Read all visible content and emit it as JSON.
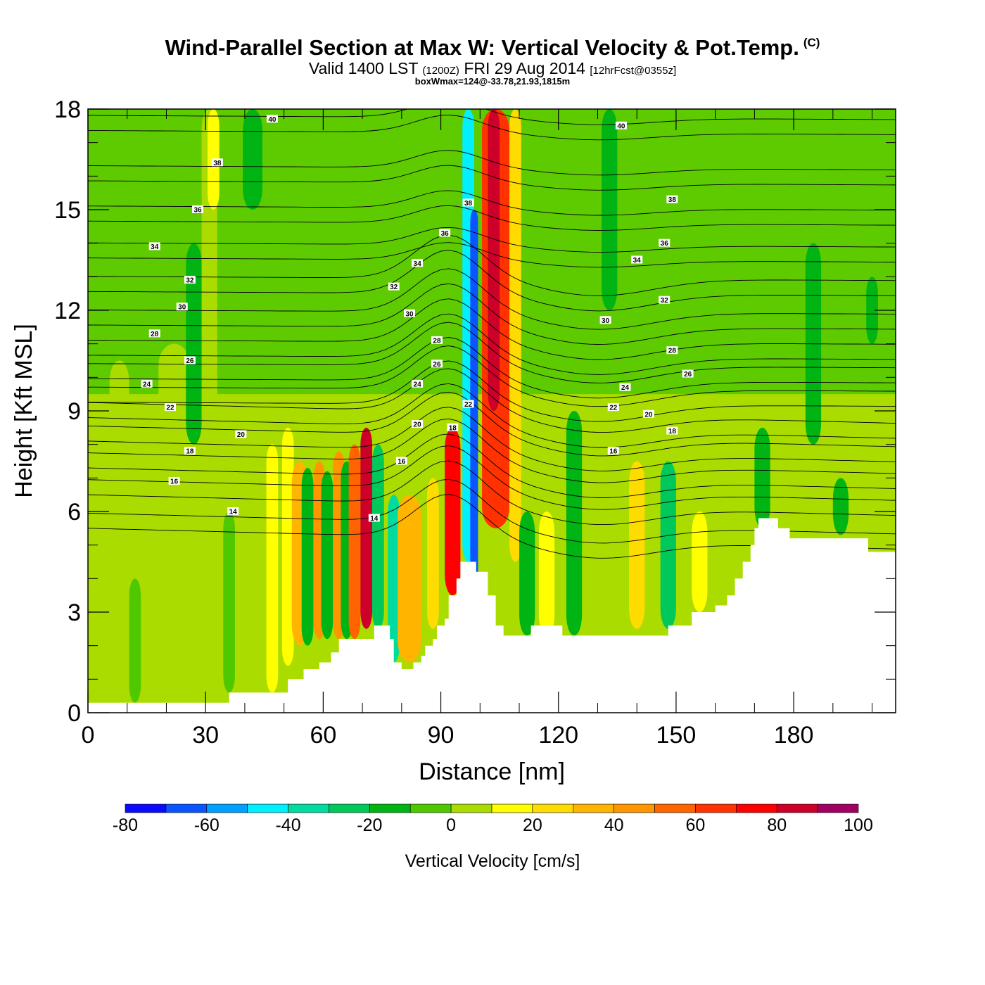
{
  "title": {
    "main": "Wind-Parallel Section at Max W: Vertical Velocity & Pot.Temp.",
    "copyright": "(C)",
    "valid_prefix": "Valid 1400 LST",
    "utc": "(1200Z)",
    "date": "FRI 29 Aug 2014",
    "forecast": "[12hrFcst@0355z]",
    "boxwmax": "boxWmax=124@-33.78,21.93,1815m"
  },
  "chart_data": {
    "type": "heatmap",
    "xlabel": "Distance [nm]",
    "ylabel": "Height [Kft MSL]",
    "xlim": [
      0,
      206
    ],
    "ylim": [
      0,
      18
    ],
    "x_ticks": [
      0,
      30,
      60,
      90,
      120,
      150,
      180
    ],
    "y_ticks": [
      0,
      3,
      6,
      9,
      12,
      15,
      18
    ],
    "colorbar": {
      "label": "Vertical Velocity [cm/s]",
      "ticks": [
        -80,
        -60,
        -40,
        -20,
        0,
        20,
        40,
        60,
        80,
        100
      ],
      "bounds": [
        -80,
        -70,
        -60,
        -50,
        -40,
        -30,
        -20,
        -10,
        0,
        10,
        20,
        30,
        40,
        50,
        60,
        70,
        80,
        90,
        100
      ],
      "colors": [
        "#0a0aff",
        "#0a55ff",
        "#00a0ff",
        "#00f0ff",
        "#00dca0",
        "#00c85a",
        "#00b414",
        "#50c800",
        "#aadc00",
        "#ffff00",
        "#ffdc00",
        "#ffb400",
        "#ff9600",
        "#ff6400",
        "#ff3200",
        "#ff0000",
        "#cc0028",
        "#a00060"
      ]
    },
    "velocity_features": [
      {
        "x": 8,
        "w": 5,
        "top": 10.5,
        "bottom": 0.3,
        "value": 5
      },
      {
        "x": 22,
        "w": 8,
        "top": 11,
        "bottom": 0.3,
        "value": 5
      },
      {
        "x": 12,
        "w": 3,
        "top": 4,
        "bottom": 0.3,
        "value": -5
      },
      {
        "x": 27,
        "w": 4,
        "top": 14,
        "bottom": 8,
        "value": -15
      },
      {
        "x": 31,
        "w": 4,
        "top": 18,
        "bottom": 5,
        "value": 5
      },
      {
        "x": 32,
        "w": 3,
        "top": 18,
        "bottom": 15,
        "value": 15
      },
      {
        "x": 36,
        "w": 3,
        "top": 6,
        "bottom": 0.6,
        "value": -5
      },
      {
        "x": 42,
        "w": 5,
        "top": 18,
        "bottom": 15,
        "value": -15
      },
      {
        "x": 47,
        "w": 3,
        "top": 8,
        "bottom": 0.6,
        "value": 12
      },
      {
        "x": 51,
        "w": 3,
        "top": 8.5,
        "bottom": 1.4,
        "value": 12
      },
      {
        "x": 54,
        "w": 4,
        "top": 7.5,
        "bottom": 2,
        "value": 35
      },
      {
        "x": 56,
        "w": 3,
        "top": 7.3,
        "bottom": 2,
        "value": -15
      },
      {
        "x": 59,
        "w": 3,
        "top": 7.5,
        "bottom": 2.2,
        "value": 40
      },
      {
        "x": 61,
        "w": 3,
        "top": 7.2,
        "bottom": 2.2,
        "value": -20
      },
      {
        "x": 64,
        "w": 3,
        "top": 7.8,
        "bottom": 2.2,
        "value": 45
      },
      {
        "x": 66,
        "w": 3,
        "top": 7.5,
        "bottom": 2.2,
        "value": -15
      },
      {
        "x": 68,
        "w": 3,
        "top": 8,
        "bottom": 2.2,
        "value": 55
      },
      {
        "x": 71,
        "w": 3,
        "top": 8.5,
        "bottom": 2.5,
        "value": 85
      },
      {
        "x": 74,
        "w": 3,
        "top": 8,
        "bottom": 2.5,
        "value": -30
      },
      {
        "x": 78,
        "w": 3,
        "top": 6.5,
        "bottom": 1.5,
        "value": -35
      },
      {
        "x": 82,
        "w": 6,
        "top": 6.5,
        "bottom": 1.5,
        "value": 35
      },
      {
        "x": 88,
        "w": 3,
        "top": 7,
        "bottom": 2.5,
        "value": 25
      },
      {
        "x": 93,
        "w": 4,
        "top": 8.5,
        "bottom": 3.5,
        "value": 75
      },
      {
        "x": 97,
        "w": 3,
        "top": 18,
        "bottom": 4.5,
        "value": -50
      },
      {
        "x": 98.5,
        "w": 2,
        "top": 15,
        "bottom": 3.5,
        "value": -70
      },
      {
        "x": 104,
        "w": 7,
        "top": 18,
        "bottom": 5.5,
        "value": 60
      },
      {
        "x": 103.5,
        "w": 3,
        "top": 18,
        "bottom": 9,
        "value": 80
      },
      {
        "x": 109,
        "w": 3,
        "top": 18,
        "bottom": 4.5,
        "value": 25
      },
      {
        "x": 112,
        "w": 4,
        "top": 6,
        "bottom": 2.3,
        "value": -15
      },
      {
        "x": 117,
        "w": 4,
        "top": 6,
        "bottom": 2.3,
        "value": 12
      },
      {
        "x": 124,
        "w": 4,
        "top": 9,
        "bottom": 2.3,
        "value": -15
      },
      {
        "x": 133,
        "w": 4,
        "top": 18,
        "bottom": 12,
        "value": -15
      },
      {
        "x": 140,
        "w": 4,
        "top": 7.5,
        "bottom": 2.5,
        "value": 20
      },
      {
        "x": 148,
        "w": 4,
        "top": 7.5,
        "bottom": 2.5,
        "value": -25
      },
      {
        "x": 156,
        "w": 4,
        "top": 6,
        "bottom": 3,
        "value": 15
      },
      {
        "x": 172,
        "w": 4,
        "top": 8.5,
        "bottom": 5.5,
        "value": -20
      },
      {
        "x": 185,
        "w": 4,
        "top": 14,
        "bottom": 8,
        "value": -15
      },
      {
        "x": 192,
        "w": 4,
        "top": 7,
        "bottom": 5.3,
        "value": -15
      },
      {
        "x": 200,
        "w": 3,
        "top": 13,
        "bottom": 11,
        "value": -15
      }
    ],
    "terrain": [
      [
        0,
        0.3
      ],
      [
        10,
        0.3
      ],
      [
        20,
        0.3
      ],
      [
        27,
        0.3
      ],
      [
        35,
        0.3
      ],
      [
        36,
        0.6
      ],
      [
        44,
        0.6
      ],
      [
        50,
        0.6
      ],
      [
        51,
        1.0
      ],
      [
        54,
        1.0
      ],
      [
        55,
        1.3
      ],
      [
        58,
        1.3
      ],
      [
        59,
        1.5
      ],
      [
        61,
        1.5
      ],
      [
        62,
        1.8
      ],
      [
        63,
        1.8
      ],
      [
        64,
        2.2
      ],
      [
        67,
        2.2
      ],
      [
        72,
        2.2
      ],
      [
        73,
        2.6
      ],
      [
        75,
        2.6
      ],
      [
        77,
        2.2
      ],
      [
        78,
        1.5
      ],
      [
        80,
        1.3
      ],
      [
        82,
        1.3
      ],
      [
        83,
        1.5
      ],
      [
        85,
        1.7
      ],
      [
        86,
        2.0
      ],
      [
        88,
        2.2
      ],
      [
        89,
        2.6
      ],
      [
        91,
        2.8
      ],
      [
        92,
        3.5
      ],
      [
        94,
        4.0
      ],
      [
        95,
        4.5
      ],
      [
        98,
        4.5
      ],
      [
        99,
        4.2
      ],
      [
        101,
        4.2
      ],
      [
        102,
        3.5
      ],
      [
        104,
        2.6
      ],
      [
        106,
        2.3
      ],
      [
        112,
        2.3
      ],
      [
        113,
        2.6
      ],
      [
        120,
        2.6
      ],
      [
        121,
        2.3
      ],
      [
        130,
        2.3
      ],
      [
        140,
        2.3
      ],
      [
        147,
        2.3
      ],
      [
        148,
        2.6
      ],
      [
        153,
        2.6
      ],
      [
        154,
        3.0
      ],
      [
        160,
        3.2
      ],
      [
        163,
        3.5
      ],
      [
        165,
        4.0
      ],
      [
        167,
        4.5
      ],
      [
        169,
        5.0
      ],
      [
        170,
        5.5
      ],
      [
        171,
        5.8
      ],
      [
        175,
        5.8
      ],
      [
        176,
        5.5
      ],
      [
        179,
        5.2
      ],
      [
        190,
        5.2
      ],
      [
        198,
        5.2
      ],
      [
        199,
        4.8
      ],
      [
        206,
        4.8
      ]
    ],
    "isentropes": {
      "levels": [
        14,
        16,
        18,
        20,
        22,
        24,
        26,
        28,
        30,
        32,
        34,
        36,
        38,
        40
      ],
      "labels": [
        {
          "text": "40",
          "x": 47,
          "y": 17.7
        },
        {
          "text": "38",
          "x": 33,
          "y": 16.4
        },
        {
          "text": "36",
          "x": 28,
          "y": 15.0
        },
        {
          "text": "34",
          "x": 17,
          "y": 13.9
        },
        {
          "text": "32",
          "x": 26,
          "y": 12.9
        },
        {
          "text": "30",
          "x": 24,
          "y": 12.1
        },
        {
          "text": "28",
          "x": 17,
          "y": 11.3
        },
        {
          "text": "26",
          "x": 26,
          "y": 10.5
        },
        {
          "text": "24",
          "x": 15,
          "y": 9.8
        },
        {
          "text": "22",
          "x": 21,
          "y": 9.1
        },
        {
          "text": "20",
          "x": 39,
          "y": 8.3
        },
        {
          "text": "18",
          "x": 26,
          "y": 7.8
        },
        {
          "text": "16",
          "x": 22,
          "y": 6.9
        },
        {
          "text": "14",
          "x": 37,
          "y": 6.0
        },
        {
          "text": "32",
          "x": 78,
          "y": 12.7
        },
        {
          "text": "30",
          "x": 82,
          "y": 11.9
        },
        {
          "text": "28",
          "x": 89,
          "y": 11.1
        },
        {
          "text": "26",
          "x": 89,
          "y": 10.4
        },
        {
          "text": "24",
          "x": 84,
          "y": 9.8
        },
        {
          "text": "20",
          "x": 84,
          "y": 8.6
        },
        {
          "text": "16",
          "x": 80,
          "y": 7.5
        },
        {
          "text": "14",
          "x": 73,
          "y": 5.8
        },
        {
          "text": "34",
          "x": 84,
          "y": 13.4
        },
        {
          "text": "36",
          "x": 91,
          "y": 14.3
        },
        {
          "text": "38",
          "x": 97,
          "y": 15.2
        },
        {
          "text": "22",
          "x": 97,
          "y": 9.2
        },
        {
          "text": "18",
          "x": 93,
          "y": 8.5
        },
        {
          "text": "40",
          "x": 136,
          "y": 17.5
        },
        {
          "text": "38",
          "x": 149,
          "y": 15.3
        },
        {
          "text": "36",
          "x": 147,
          "y": 14.0
        },
        {
          "text": "34",
          "x": 140,
          "y": 13.5
        },
        {
          "text": "32",
          "x": 147,
          "y": 12.3
        },
        {
          "text": "30",
          "x": 132,
          "y": 11.7
        },
        {
          "text": "28",
          "x": 149,
          "y": 10.8
        },
        {
          "text": "26",
          "x": 153,
          "y": 10.1
        },
        {
          "text": "24",
          "x": 137,
          "y": 9.7
        },
        {
          "text": "22",
          "x": 134,
          "y": 9.1
        },
        {
          "text": "20",
          "x": 143,
          "y": 8.9
        },
        {
          "text": "18",
          "x": 149,
          "y": 8.4
        },
        {
          "text": "16",
          "x": 134,
          "y": 7.8
        }
      ]
    }
  }
}
